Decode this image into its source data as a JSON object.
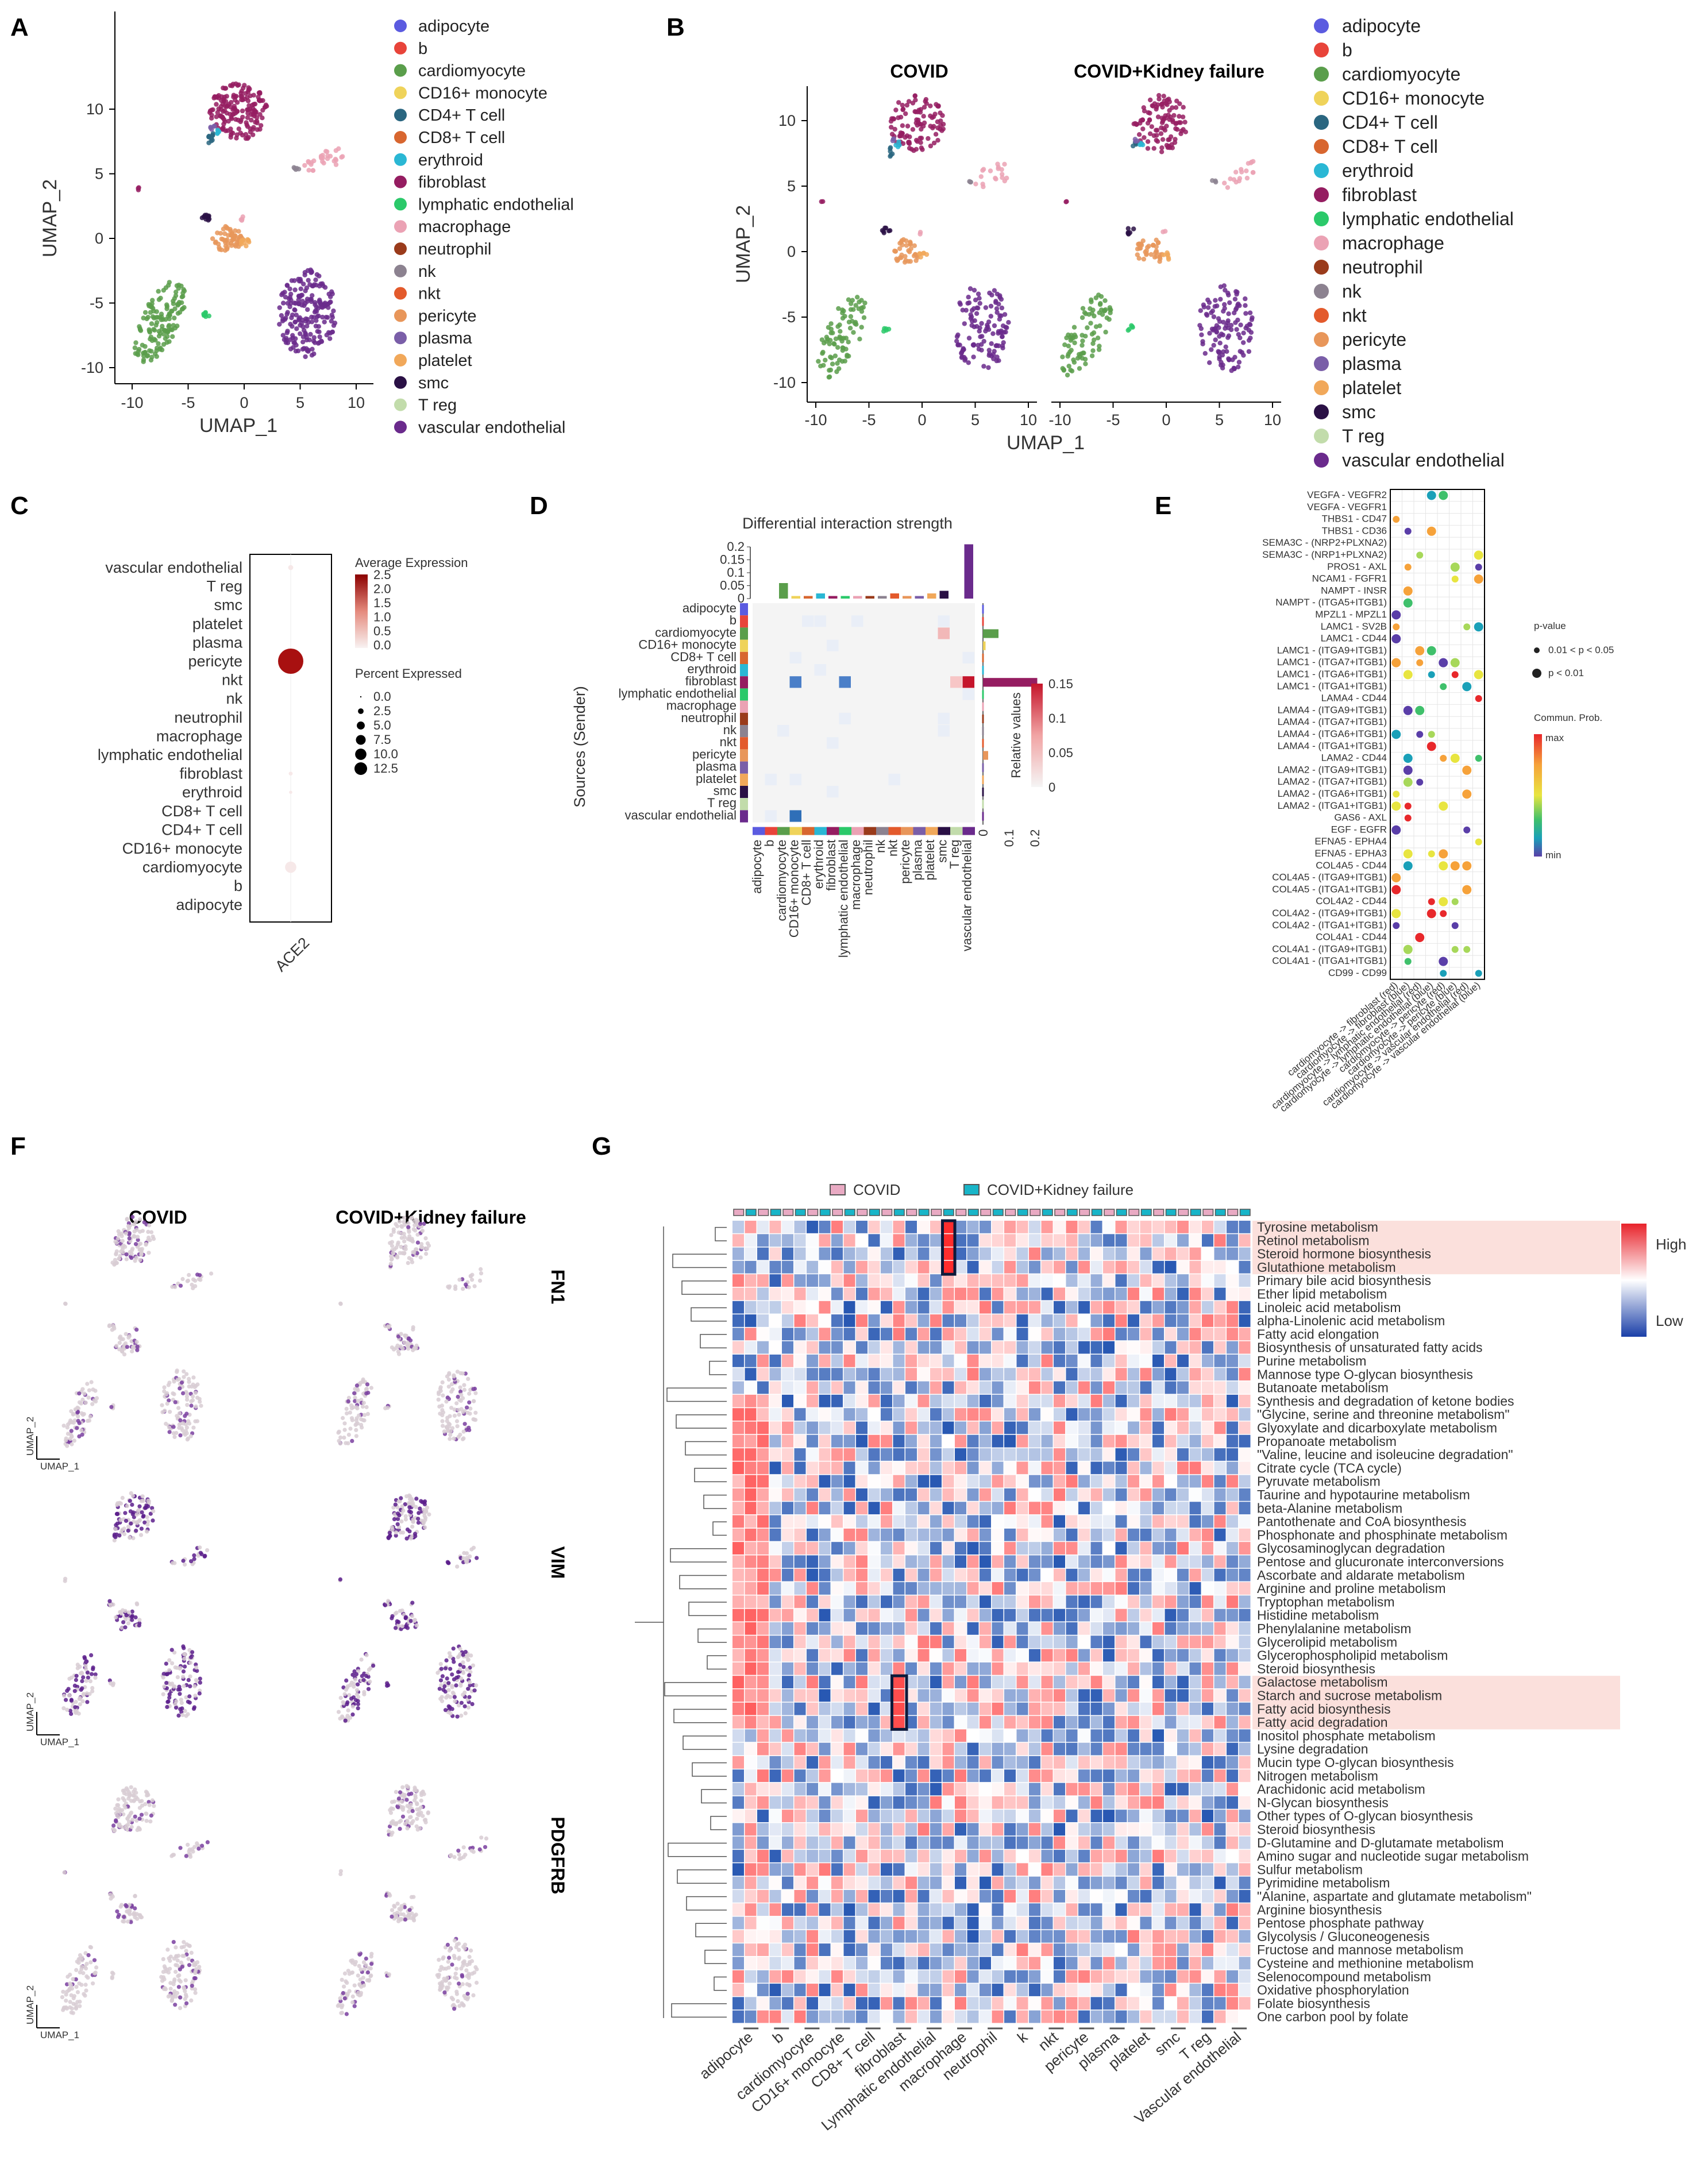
{
  "colors": {
    "adipocyte": "#5b5be0",
    "b": "#e8443a",
    "cardiomyocyte": "#5a9e4b",
    "CD16+ monocyte": "#efd35a",
    "CD4+ T cell": "#2a6680",
    "CD8+ T cell": "#d8662f",
    "erythroid": "#2ab7d4",
    "fibroblast": "#951d61",
    "lymphatic endothelial": "#2bc96a",
    "macrophage": "#eba2b4",
    "neutrophil": "#9a3b1b",
    "nk": "#8c8290",
    "nkt": "#e35a2c",
    "pericyte": "#e8965a",
    "plasma": "#7a5ea8",
    "platelet": "#f1a85a",
    "smc": "#2a1045",
    "T reg": "#c2dcab",
    "vascular endothelial": "#6a2a8c"
  },
  "panelA": {
    "label": "A",
    "xlabel": "UMAP_1",
    "ylabel": "UMAP_2",
    "xticks": [
      "-10",
      "-5",
      "0",
      "5",
      "10"
    ],
    "yticks": [
      "10",
      "5",
      "0",
      "-5",
      "-10"
    ],
    "legend": [
      "adipocyte",
      "b",
      "cardiomyocyte",
      "CD16+ monocyte",
      "CD4+ T cell",
      "CD8+ T cell",
      "erythroid",
      "fibroblast",
      "lymphatic endothelial",
      "macrophage",
      "neutrophil",
      "nk",
      "nkt",
      "pericyte",
      "plasma",
      "platelet",
      "smc",
      "T reg",
      "vascular endothelial"
    ]
  },
  "panelB": {
    "label": "B",
    "facets": [
      "COVID",
      "COVID+Kidney failure"
    ],
    "xlabel": "UMAP_1",
    "ylabel": "UMAP_2",
    "xticks": [
      "-10",
      "-5",
      "0",
      "5",
      "10"
    ],
    "yticks": [
      "10",
      "5",
      "0",
      "-5",
      "-10"
    ]
  },
  "panelC": {
    "label": "C",
    "gene": "ACE2",
    "rows": [
      "vascular endothelial",
      "T reg",
      "smc",
      "platelet",
      "plasma",
      "pericyte",
      "nkt",
      "nk",
      "neutrophil",
      "macrophage",
      "lymphatic endothelial",
      "fibroblast",
      "erythroid",
      "CD8+ T cell",
      "CD4+ T cell",
      "CD16+ monocyte",
      "cardiomyocyte",
      "b",
      "adipocyte"
    ],
    "avg_title": "Average Expression",
    "avg_ticks": [
      "2.5",
      "2.0",
      "1.5",
      "1.0",
      "0.5",
      "0.0"
    ],
    "pct_title": "Percent Expressed",
    "pct_ticks": [
      "0.0",
      "2.5",
      "5.0",
      "7.5",
      "10.0",
      "12.5"
    ],
    "dots": [
      {
        "row": "pericyte",
        "pct": 12.5,
        "avg": 2.6
      },
      {
        "row": "cardiomyocyte",
        "pct": 2.5,
        "avg": 0.4
      },
      {
        "row": "vascular endothelial",
        "pct": 0.5,
        "avg": 0.1
      },
      {
        "row": "fibroblast",
        "pct": 0.3,
        "avg": 0.1
      },
      {
        "row": "erythroid",
        "pct": 0.2,
        "avg": 0.1
      }
    ]
  },
  "panelD": {
    "label": "D",
    "title": "Differential interaction strength",
    "ylabel": "Sources (Sender)",
    "top_ticks": [
      "0.2",
      "0.15",
      "0.1",
      "0.05",
      "0"
    ],
    "right_ticks": [
      "0",
      "0.1",
      "0.2"
    ],
    "scale_title": "Relative values",
    "scale_ticks": [
      "0.15",
      "0.1",
      "0.05",
      "0"
    ],
    "rows": [
      "adipocyte",
      "b",
      "cardiomyocyte",
      "CD16+ monocyte",
      "CD8+ T cell",
      "erythroid",
      "fibroblast",
      "lymphatic endothelial",
      "macrophage",
      "neutrophil",
      "nk",
      "nkt",
      "pericyte",
      "plasma",
      "platelet",
      "smc",
      "T reg",
      "vascular endothelial"
    ],
    "top_bar_values": [
      0.0,
      0.0,
      0.06,
      0.01,
      0.01,
      0.02,
      0.01,
      0.01,
      0.01,
      0.01,
      0.01,
      0.02,
      0.01,
      0.01,
      0.02,
      0.03,
      0.0,
      0.21
    ],
    "right_bar_values": [
      0.0,
      0.0,
      0.06,
      0.01,
      0.0,
      0.0,
      0.21,
      0.0,
      0.0,
      0.0,
      0.0,
      0.0,
      0.02,
      0.0,
      0.0,
      0.0,
      0.0,
      0.0
    ]
  },
  "panelE": {
    "label": "E",
    "pval_title": "p-value",
    "pval_items": [
      "0.01 < p < 0.05",
      "p < 0.01"
    ],
    "prob_title": "Commun. Prob.",
    "prob_max": "max",
    "prob_min": "min",
    "pairs": [
      "VEGFA - VEGFR2",
      "VEGFA - VEGFR1",
      "THBS1 - CD47",
      "THBS1 - CD36",
      "SEMA3C - (NRP2+PLXNA2)",
      "SEMA3C - (NRP1+PLXNA2)",
      "PROS1 - AXL",
      "NCAM1 - FGFR1",
      "NAMPT - INSR",
      "NAMPT - (ITGA5+ITGB1)",
      "MPZL1 - MPZL1",
      "LAMC1 - SV2B",
      "LAMC1 - CD44",
      "LAMC1 - (ITGA9+ITGB1)",
      "LAMC1 - (ITGA7+ITGB1)",
      "LAMC1 - (ITGA6+ITGB1)",
      "LAMC1 - (ITGA1+ITGB1)",
      "LAMA4 - CD44",
      "LAMA4 - (ITGA9+ITGB1)",
      "LAMA4 - (ITGA7+ITGB1)",
      "LAMA4 - (ITGA6+ITGB1)",
      "LAMA4 - (ITGA1+ITGB1)",
      "LAMA2 - CD44",
      "LAMA2 - (ITGA9+ITGB1)",
      "LAMA2 - (ITGA7+ITGB1)",
      "LAMA2 - (ITGA6+ITGB1)",
      "LAMA2 - (ITGA1+ITGB1)",
      "GAS6 - AXL",
      "EGF - EGFR",
      "EFNA5 - EPHA4",
      "EFNA5 - EPHA3",
      "COL4A5 - CD44",
      "COL4A5 - (ITGA9+ITGB1)",
      "COL4A5 - (ITGA1+ITGB1)",
      "COL4A2 - CD44",
      "COL4A2 - (ITGA9+ITGB1)",
      "COL4A2 - (ITGA1+ITGB1)",
      "COL4A1 - CD44",
      "COL4A1 - (ITGA9+ITGB1)",
      "COL4A1 - (ITGA1+ITGB1)",
      "CD99 - CD99"
    ],
    "columns": [
      "cardiomyocyte -> fibroblast (red)",
      "cardiomyocyte -> fibroblast (blue)",
      "cardiomyocyte -> lymphatic endothelial (red)",
      "cardiomyocyte -> lymphatic endothelial (blue)",
      "cardiomyocyte -> pericyte (red)",
      "cardiomyocyte -> pericyte (blue)",
      "cardiomyocyte -> vascular endothelial (red)",
      "cardiomyocyte -> vascular endothelial (blue)"
    ]
  },
  "panelF": {
    "label": "F",
    "facets": [
      "COVID",
      "COVID+Kidney failure"
    ],
    "genes": [
      "FN1",
      "VIM",
      "PDGFRB"
    ],
    "axis1": "UMAP_1",
    "axis2": "UMAP_2"
  },
  "panelG": {
    "label": "G",
    "legend": [
      "COVID",
      "COVID+Kidney failure"
    ],
    "scale_high": "High",
    "scale_low": "Low",
    "pathways": [
      "Tyrosine metabolism",
      "Retinol metabolism",
      "Steroid hormone biosynthesis",
      "Glutathione metabolism",
      "Primary bile acid biosynthesis",
      "Ether lipid metabolism",
      "Linoleic acid metabolism",
      "alpha-Linolenic acid metabolism",
      "Fatty acid elongation",
      "Biosynthesis of unsaturated fatty acids",
      "Purine metabolism",
      "Mannose type O-glycan biosynthesis",
      "Butanoate metabolism",
      "Synthesis and degradation of ketone bodies",
      "\"Glycine, serine and threonine metabolism\"",
      "Glyoxylate and dicarboxylate metabolism",
      "Propanoate metabolism",
      "\"Valine, leucine and isoleucine degradation\"",
      "Citrate cycle (TCA cycle)",
      "Pyruvate metabolism",
      "Taurine and hypotaurine metabolism",
      "beta-Alanine metabolism",
      "Pantothenate and CoA biosynthesis",
      "Phosphonate and phosphinate metabolism",
      "Glycosaminoglycan degradation",
      "Pentose and glucuronate interconversions",
      "Ascorbate and aldarate metabolism",
      "Arginine and proline metabolism",
      "Tryptophan metabolism",
      "Histidine metabolism",
      "Phenylalanine metabolism",
      "Glycerolipid metabolism",
      "Glycerophospholipid metabolism",
      "Steroid biosynthesis",
      "Galactose metabolism",
      "Starch and sucrose metabolism",
      "Fatty acid biosynthesis",
      "Fatty acid degradation",
      "Inositol phosphate metabolism",
      "Lysine degradation",
      "Mucin type O-glycan biosynthesis",
      "Nitrogen metabolism",
      "Arachidonic acid metabolism",
      "N-Glycan biosynthesis",
      "Other types of O-glycan biosynthesis",
      "Steroid biosynthesis",
      "D-Glutamine and D-glutamate metabolism",
      "Amino sugar and nucleotide sugar metabolism",
      "Sulfur metabolism",
      "Pyrimidine metabolism",
      "\"Alanine, aspartate and glutamate metabolism\"",
      "Arginine biosynthesis",
      "Pentose phosphate pathway",
      "Glycolysis / Gluconeogenesis",
      "Fructose and mannose metabolism",
      "Cysteine and methionine metabolism",
      "Selenocompound metabolism",
      "Oxidative phosphorylation",
      "Folate biosynthesis",
      "One carbon pool by folate"
    ],
    "columns": [
      "adipocyte",
      "b",
      "cardiomyocyte",
      "CD16+ monocyte",
      "CD8+ T cell",
      "fibroblast",
      "Lymphatic endothelial",
      "macrophage",
      "neutrophil",
      "k",
      "nkt",
      "pericyte",
      "plasma",
      "platelet",
      "smc",
      "T reg",
      "Vascular endothelial"
    ]
  }
}
